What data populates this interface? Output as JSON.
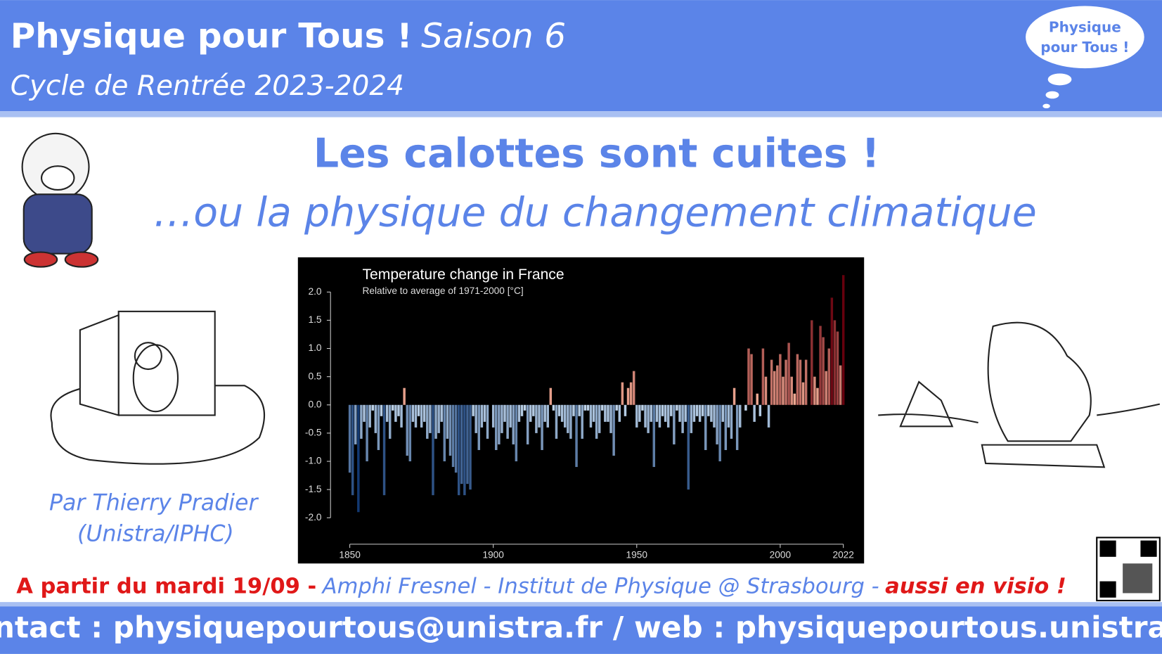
{
  "header": {
    "title": "Physique pour Tous !",
    "season": "Saison 6",
    "cycle": "Cycle de Rentrée 2023-2024"
  },
  "bubble": {
    "line1": "Physique",
    "line2": "pour Tous !"
  },
  "talk": {
    "title": "Les calottes sont cuites !",
    "subtitle": "…ou la physique du changement climatique"
  },
  "author": {
    "name": "Par Thierry Pradier",
    "affiliation": "(Unistra/IPHC)"
  },
  "info": {
    "date": "A partir du mardi 19/09 -",
    "place": "Amphi Fresnel - Institut de Physique @ Strasbourg -",
    "visio": "aussi en visio !"
  },
  "footer": {
    "contact": "contact : physiquepourtous@unistra.fr / web : physiquepourtous.unistra.fr"
  },
  "chart_data": {
    "type": "bar",
    "title": "Temperature change in France",
    "subtitle": "Relative to average of 1971-2000  [°C]",
    "x": [
      1850,
      1851,
      1852,
      1853,
      1854,
      1855,
      1856,
      1857,
      1858,
      1859,
      1860,
      1861,
      1862,
      1863,
      1864,
      1865,
      1866,
      1867,
      1868,
      1869,
      1870,
      1871,
      1872,
      1873,
      1874,
      1875,
      1876,
      1877,
      1878,
      1879,
      1880,
      1881,
      1882,
      1883,
      1884,
      1885,
      1886,
      1887,
      1888,
      1889,
      1890,
      1891,
      1892,
      1893,
      1894,
      1895,
      1896,
      1897,
      1898,
      1899,
      1900,
      1901,
      1902,
      1903,
      1904,
      1905,
      1906,
      1907,
      1908,
      1909,
      1910,
      1911,
      1912,
      1913,
      1914,
      1915,
      1916,
      1917,
      1918,
      1919,
      1920,
      1921,
      1922,
      1923,
      1924,
      1925,
      1926,
      1927,
      1928,
      1929,
      1930,
      1931,
      1932,
      1933,
      1934,
      1935,
      1936,
      1937,
      1938,
      1939,
      1940,
      1941,
      1942,
      1943,
      1944,
      1945,
      1946,
      1947,
      1948,
      1949,
      1950,
      1951,
      1952,
      1953,
      1954,
      1955,
      1956,
      1957,
      1958,
      1959,
      1960,
      1961,
      1962,
      1963,
      1964,
      1965,
      1966,
      1967,
      1968,
      1969,
      1970,
      1971,
      1972,
      1973,
      1974,
      1975,
      1976,
      1977,
      1978,
      1979,
      1980,
      1981,
      1982,
      1983,
      1984,
      1985,
      1986,
      1987,
      1988,
      1989,
      1990,
      1991,
      1992,
      1993,
      1994,
      1995,
      1996,
      1997,
      1998,
      1999,
      2000,
      2001,
      2002,
      2003,
      2004,
      2005,
      2006,
      2007,
      2008,
      2009,
      2010,
      2011,
      2012,
      2013,
      2014,
      2015,
      2016,
      2017,
      2018,
      2019,
      2020,
      2021,
      2022
    ],
    "values": [
      -1.2,
      -1.6,
      -0.7,
      -1.9,
      -0.6,
      -0.3,
      -1.0,
      -0.4,
      -0.1,
      -0.5,
      -0.8,
      -0.2,
      -1.6,
      -0.3,
      -0.6,
      -0.1,
      -0.3,
      -0.2,
      -0.4,
      0.3,
      -0.9,
      -1.0,
      -0.3,
      -0.4,
      -0.2,
      -0.4,
      -0.3,
      -0.6,
      -0.5,
      -1.6,
      -0.6,
      -0.5,
      -0.3,
      -1.0,
      -0.6,
      -0.9,
      -1.1,
      -1.2,
      -1.6,
      -1.4,
      -1.6,
      -1.4,
      -1.5,
      -0.2,
      -0.5,
      -0.8,
      -0.4,
      -0.3,
      -0.6,
      0.0,
      -0.4,
      -0.8,
      -0.7,
      -0.5,
      -0.3,
      -0.6,
      -0.4,
      -0.7,
      -1.0,
      -0.3,
      -0.2,
      -0.1,
      -0.7,
      -0.3,
      -0.2,
      -0.5,
      -0.4,
      -0.8,
      -0.3,
      -0.4,
      0.3,
      -0.1,
      -0.6,
      -0.2,
      -0.3,
      -0.4,
      -0.5,
      -0.6,
      -0.2,
      -1.1,
      -0.2,
      -0.6,
      -0.1,
      -0.1,
      -0.4,
      -0.3,
      -0.6,
      -0.5,
      -0.1,
      -0.3,
      -0.3,
      -0.5,
      -0.9,
      -0.1,
      -0.3,
      0.4,
      -0.2,
      0.3,
      0.4,
      0.6,
      -0.4,
      -0.3,
      -0.1,
      -0.4,
      -0.5,
      -0.3,
      -1.1,
      -0.3,
      -0.4,
      -0.2,
      -0.3,
      -0.4,
      -0.2,
      -0.7,
      -0.1,
      -0.3,
      -0.5,
      -0.3,
      -1.5,
      -0.5,
      -0.3,
      -0.2,
      -0.3,
      -0.2,
      -0.8,
      -0.2,
      -0.3,
      -0.4,
      -0.7,
      -1.0,
      -0.3,
      -0.8,
      -0.4,
      -0.6,
      0.3,
      -0.8,
      -0.4,
      0.0,
      -0.1,
      1.0,
      0.9,
      -0.3,
      0.2,
      -0.2,
      1.0,
      0.5,
      -0.4,
      0.8,
      0.6,
      0.7,
      0.9,
      0.5,
      0.8,
      1.1,
      0.5,
      0.2,
      0.9,
      0.8,
      0.4,
      0.8,
      0.0,
      1.5,
      0.5,
      0.3,
      1.4,
      1.2,
      0.6,
      1.0,
      1.9,
      1.5,
      1.3,
      0.7,
      2.3
    ],
    "xlim": [
      1850,
      2022
    ],
    "xticks": [
      1850,
      1900,
      1950,
      2000,
      2022
    ],
    "ylim": [
      -2.6,
      2.3
    ],
    "yticks": [
      {
        "value": 2,
        "label": "2.0"
      },
      1.5,
      {
        "value": 1,
        "label": "1.0"
      },
      0.5,
      {
        "value": 0,
        "label": "0.0"
      },
      -0.5,
      {
        "value": -1,
        "label": "-1.0"
      },
      -1.5,
      {
        "value": -2,
        "label": "-2.0"
      }
    ],
    "grid": false
  }
}
